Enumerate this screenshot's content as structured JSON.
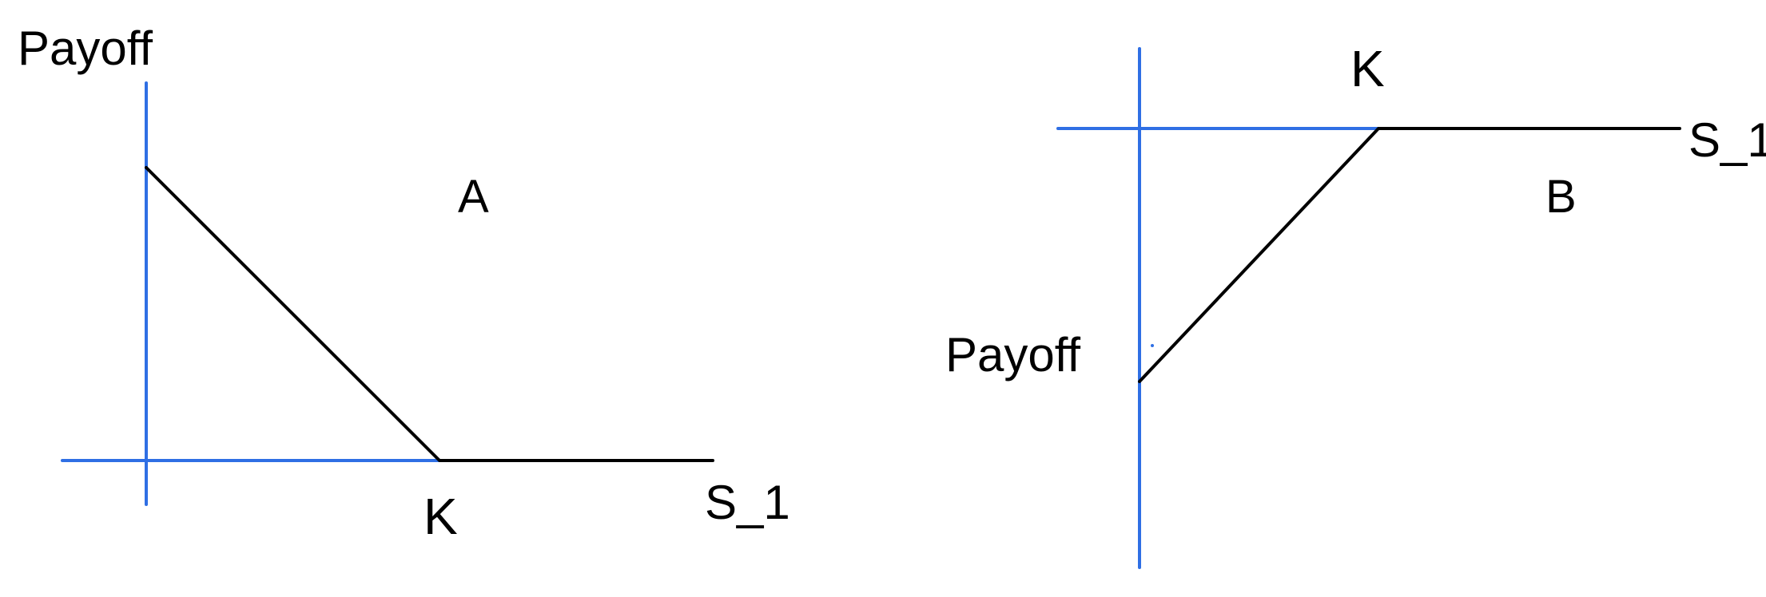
{
  "colors": {
    "axis": "#2f6fe4",
    "payoff_line": "#000000",
    "text": "#000000",
    "background": "#ffffff"
  },
  "panel_a": {
    "y_axis_label": "Payoff",
    "x_axis_label": "S_1",
    "strike_label": "K",
    "panel_label": "A"
  },
  "panel_b": {
    "y_axis_label": "Payoff",
    "x_axis_label": "S_1",
    "strike_label": "K",
    "panel_label": "B"
  }
}
